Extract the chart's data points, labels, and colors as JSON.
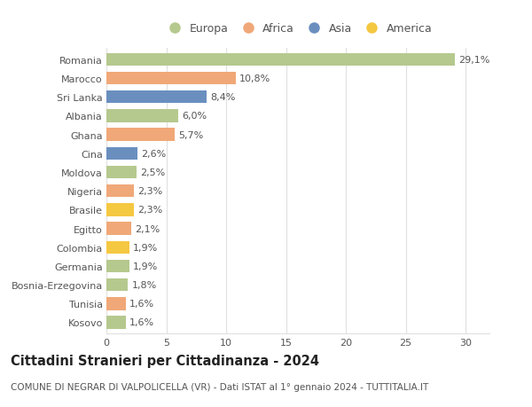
{
  "countries": [
    "Romania",
    "Marocco",
    "Sri Lanka",
    "Albania",
    "Ghana",
    "Cina",
    "Moldova",
    "Nigeria",
    "Brasile",
    "Egitto",
    "Colombia",
    "Germania",
    "Bosnia-Erzegovina",
    "Tunisia",
    "Kosovo"
  ],
  "values": [
    29.1,
    10.8,
    8.4,
    6.0,
    5.7,
    2.6,
    2.5,
    2.3,
    2.3,
    2.1,
    1.9,
    1.9,
    1.8,
    1.6,
    1.6
  ],
  "labels": [
    "29,1%",
    "10,8%",
    "8,4%",
    "6,0%",
    "5,7%",
    "2,6%",
    "2,5%",
    "2,3%",
    "2,3%",
    "2,1%",
    "1,9%",
    "1,9%",
    "1,8%",
    "1,6%",
    "1,6%"
  ],
  "continents": [
    "Europa",
    "Africa",
    "Asia",
    "Europa",
    "Africa",
    "Asia",
    "Europa",
    "Africa",
    "America",
    "Africa",
    "America",
    "Europa",
    "Europa",
    "Africa",
    "Europa"
  ],
  "colors": {
    "Europa": "#b5c98e",
    "Africa": "#f0a878",
    "Asia": "#6a8fbf",
    "America": "#f5c842"
  },
  "xlim": [
    0,
    32
  ],
  "xticks": [
    0,
    5,
    10,
    15,
    20,
    25,
    30
  ],
  "title": "Cittadini Stranieri per Cittadinanza - 2024",
  "subtitle": "COMUNE DI NEGRAR DI VALPOLICELLA (VR) - Dati ISTAT al 1° gennaio 2024 - TUTTITALIA.IT",
  "background_color": "#ffffff",
  "grid_color": "#e0e0e0",
  "bar_height": 0.68,
  "label_fontsize": 8.0,
  "tick_fontsize": 8.0,
  "ytick_fontsize": 8.0,
  "title_fontsize": 10.5,
  "subtitle_fontsize": 7.5,
  "legend_fontsize": 9.0
}
